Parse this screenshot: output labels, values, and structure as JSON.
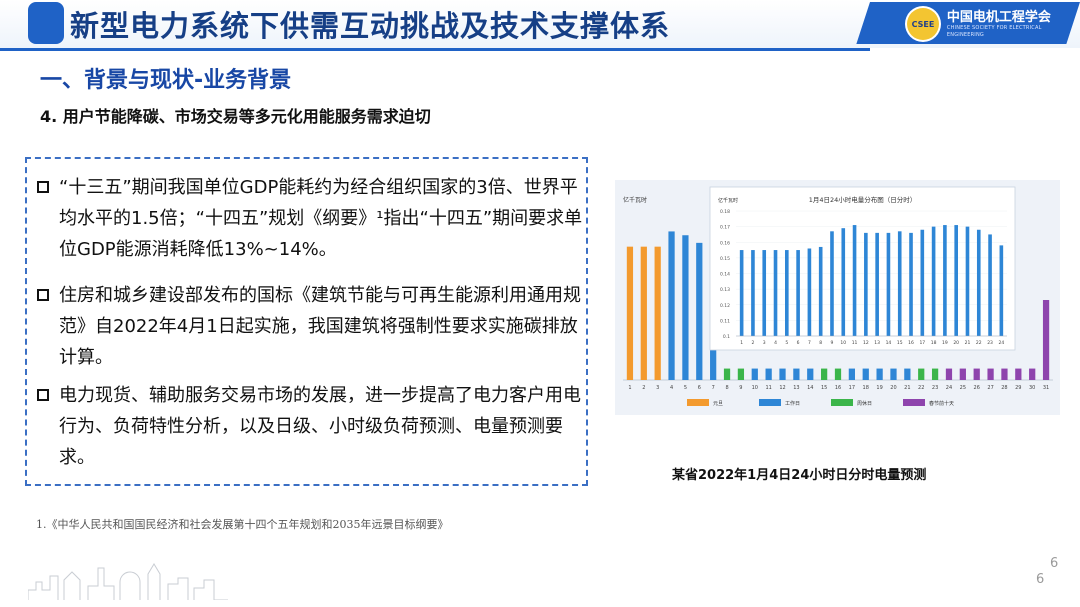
{
  "header": {
    "title": "新型电力系统下供需互动挑战及技术支撑体系",
    "org_name": "中国电机工程学会",
    "org_en": "CHINESE SOCIETY FOR ELECTRICAL ENGINEERING",
    "logo_text": "CSEE"
  },
  "section": {
    "heading": "一、背景与现状-业务背景",
    "sub_heading": "4. 用户节能降碳、市场交易等多元化用能服务需求迫切"
  },
  "bullets": [
    {
      "text": "“十三五”期间我国单位GDP能耗约为经合组织国家的3倍、世界平均水平的1.5倍；“十四五”规划《纲要》¹指出“十四五”期间要求单位GDP能源消耗降低13%~14%。"
    },
    {
      "text": "住房和城乡建设部发布的国标《建筑节能与可再生能源利用通用规范》自2022年4月1日起实施，我国建筑将强制性要求实施碳排放计算。"
    },
    {
      "text": "电力现货、辅助服务交易市场的发展，进一步提高了电力客户用电行为、负荷特性分析，以及日级、小时级负荷预测、电量预测要求。"
    }
  ],
  "footnote": "1.《中华人民共和国国民经济和社会发展第十四个五年规划和2035年远景目标纲要》",
  "chart": {
    "caption": "某省2022年1月4日24小时日分时电量预测",
    "colors": {
      "holiday": "#f39a2e",
      "workday": "#2e86d6",
      "rest": "#3bb54a",
      "spring": "#8e44ad"
    }
  },
  "chart_data": [
    {
      "type": "bar",
      "title": "",
      "ylabel": "亿千瓦时",
      "categories": [
        "1",
        "2",
        "3",
        "4",
        "5",
        "6",
        "7",
        "8",
        "9",
        "10",
        "11",
        "12",
        "13",
        "14",
        "15",
        "16",
        "17",
        "18",
        "19",
        "20",
        "21",
        "22",
        "23",
        "24",
        "25",
        "26",
        "27",
        "28",
        "29",
        "30",
        "31"
      ],
      "values": [
        3.5,
        3.5,
        3.5,
        3.9,
        3.8,
        3.6,
        3.0,
        0.3,
        0.3,
        0.3,
        0.3,
        0.3,
        0.3,
        0.3,
        0.3,
        0.3,
        0.3,
        0.3,
        0.3,
        0.3,
        0.3,
        0.3,
        0.3,
        0.3,
        0.3,
        0.3,
        0.3,
        0.3,
        0.3,
        0.3,
        2.1
      ],
      "legend": [
        "元旦",
        "工作日",
        "周休日",
        "春节前十天"
      ],
      "legend_position": "bottom"
    },
    {
      "type": "bar",
      "title": "1月4日24小时电量分布图（日分时）",
      "ylabel": "亿千瓦时",
      "ylim": [
        0.1,
        0.18
      ],
      "y_ticks": [
        "0.18",
        "0.17",
        "0.16",
        "0.15",
        "0.14",
        "0.13",
        "0.12",
        "0.11",
        "0.1"
      ],
      "categories": [
        "1",
        "2",
        "3",
        "4",
        "5",
        "6",
        "7",
        "8",
        "9",
        "10",
        "11",
        "12",
        "13",
        "14",
        "15",
        "16",
        "17",
        "18",
        "19",
        "20",
        "21",
        "22",
        "23",
        "24"
      ],
      "values": [
        0.155,
        0.155,
        0.155,
        0.155,
        0.155,
        0.155,
        0.156,
        0.157,
        0.167,
        0.169,
        0.171,
        0.166,
        0.166,
        0.166,
        0.167,
        0.166,
        0.168,
        0.17,
        0.171,
        0.171,
        0.17,
        0.168,
        0.165,
        0.158
      ]
    }
  ],
  "page": {
    "number": "6"
  }
}
